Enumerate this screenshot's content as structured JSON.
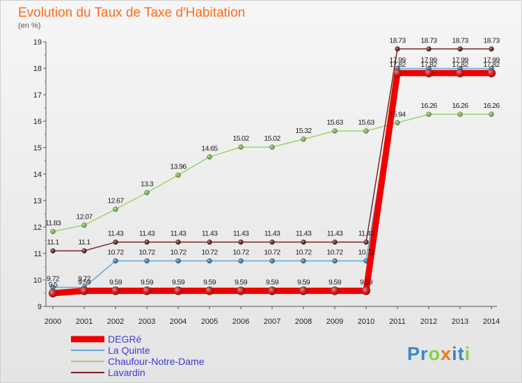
{
  "title": "Evolution du Taux de Taxe d'Habitation",
  "subtitle": "(en %)",
  "logo": "Proxiti",
  "chart_data": {
    "type": "line",
    "x": [
      "2000",
      "2001",
      "2002",
      "2003",
      "2004",
      "2005",
      "2006",
      "2007",
      "2008",
      "2009",
      "2010",
      "2011",
      "2012",
      "2013",
      "2014"
    ],
    "ylim": [
      9,
      19
    ],
    "yticks": [
      9,
      10,
      11,
      12,
      13,
      14,
      15,
      16,
      17,
      18,
      19
    ],
    "grid": false,
    "legend": "bottom-left",
    "series": [
      {
        "name": "DEGRé",
        "color": "#ee0000",
        "values": [
          9.5,
          9.59,
          9.59,
          9.59,
          9.59,
          9.59,
          9.59,
          9.59,
          9.59,
          9.59,
          9.59,
          17.82,
          17.82,
          17.82,
          17.82
        ],
        "labels": [
          "9.5",
          "9.59",
          "9.59",
          "9.59",
          "9.59",
          "9.59",
          "9.59",
          "9.59",
          "9.59",
          "9.59",
          "9.59",
          "17.82",
          "17.82",
          "17.82",
          "17.82"
        ]
      },
      {
        "name": "La Quinte",
        "color": "#6aa6d4",
        "values": [
          9.72,
          9.72,
          10.72,
          10.72,
          10.72,
          10.72,
          10.72,
          10.72,
          10.72,
          10.72,
          10.72,
          17.99,
          17.99,
          17.99,
          17.99
        ],
        "labels": [
          "9.72",
          "9.72",
          "10.72",
          "10.72",
          "10.72",
          "10.72",
          "10.72",
          "10.72",
          "10.72",
          "10.72",
          "10.72",
          "17.99",
          "17.99",
          "17.99",
          "17.99"
        ]
      },
      {
        "name": "Chaufour-Notre-Dame",
        "color": "#9bd46a",
        "values": [
          11.83,
          12.07,
          12.67,
          13.3,
          13.96,
          14.65,
          15.02,
          15.02,
          15.32,
          15.63,
          15.63,
          15.94,
          16.26,
          16.26,
          16.26
        ],
        "labels": [
          "11.83",
          "12.07",
          "12.67",
          "13.3",
          "13.96",
          "14.65",
          "15.02",
          "15.02",
          "15.32",
          "15.63",
          "15.63",
          "15.94",
          "16.26",
          "16.26",
          "16.26"
        ]
      },
      {
        "name": "Lavardin",
        "color": "#7a2222",
        "values": [
          11.1,
          11.1,
          11.43,
          11.43,
          11.43,
          11.43,
          11.43,
          11.43,
          11.43,
          11.43,
          11.43,
          18.73,
          18.73,
          18.73,
          18.73
        ],
        "labels": [
          "11.1",
          "11.1",
          "11.43",
          "11.43",
          "11.43",
          "11.43",
          "11.43",
          "11.43",
          "11.43",
          "11.43",
          "11.43",
          "18.73",
          "18.73",
          "18.73",
          "18.73"
        ]
      }
    ]
  }
}
